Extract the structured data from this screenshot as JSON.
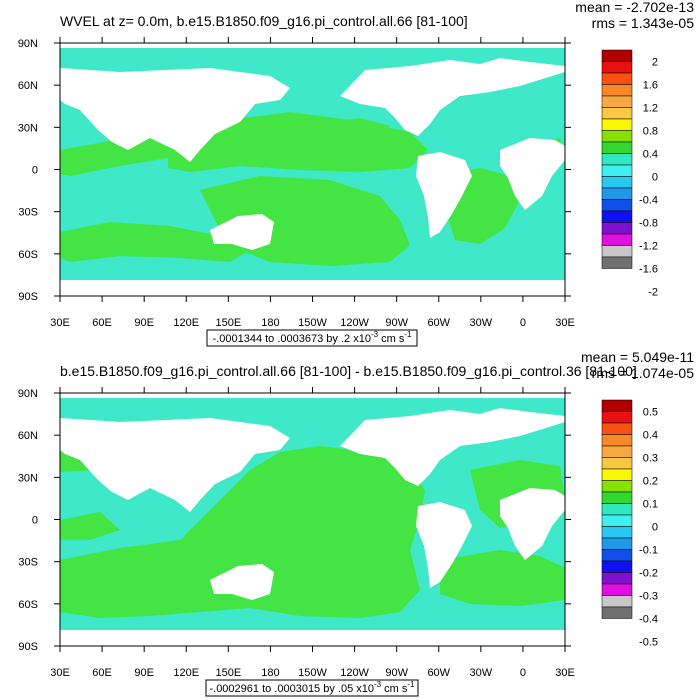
{
  "chart_data": [
    {
      "type": "heatmap",
      "title": "WVEL at z=   0.0m, b.e15.B1850.f09_g16.pi_control.all.66 [81-100]",
      "stats": [
        "mean = -2.702e-13",
        "rms = 1.343e-05"
      ],
      "x_ticks": [
        "30E",
        "60E",
        "90E",
        "120E",
        "150E",
        "180",
        "150W",
        "120W",
        "90W",
        "60W",
        "30W",
        "0",
        "30E"
      ],
      "y_ticks": [
        "90N",
        "60N",
        "30N",
        "0",
        "30S",
        "60S",
        "90S"
      ],
      "range_text": "-.0001344 to .0003673 by .2 x10",
      "range_exp": "-3",
      "range_units": " cm s",
      "range_units_exp": "-1",
      "colorbar_labels": [
        "2",
        "1.6",
        "1.2",
        "0.8",
        "0.4",
        "0",
        "-0.4",
        "-0.8",
        "-1.2",
        "-1.6",
        "-2"
      ]
    },
    {
      "type": "heatmap",
      "title": "b.e15.B1850.f09_g16.pi_control.all.66 [81-100] - b.e15.B1850.f09_g16.pi_control.36 [81-100]",
      "stats": [
        "mean = 5.049e-11",
        "rms = 1.074e-05"
      ],
      "x_ticks": [
        "30E",
        "60E",
        "90E",
        "120E",
        "150E",
        "180",
        "150W",
        "120W",
        "90W",
        "60W",
        "30W",
        "0",
        "30E"
      ],
      "y_ticks": [
        "90N",
        "60N",
        "30N",
        "0",
        "30S",
        "60S",
        "90S"
      ],
      "range_text": "-.0002961 to .0003015 by .05 x10",
      "range_exp": "-3",
      "range_units": " cm s",
      "range_units_exp": "-1",
      "colorbar_labels": [
        "0.5",
        "0.4",
        "0.3",
        "0.2",
        "0.1",
        "0",
        "-0.1",
        "-0.2",
        "-0.3",
        "-0.4",
        "-0.5"
      ]
    }
  ],
  "colors": {
    "ocean_pos": "#44e444",
    "ocean_neg": "#3ee8c8",
    "land": "#ffffff",
    "colorbar": [
      "#b00000",
      "#e81010",
      "#f85010",
      "#f88828",
      "#f8a840",
      "#f8c840",
      "#f8f800",
      "#88e000",
      "#30d830",
      "#30e8c0",
      "#40f0f0",
      "#28c8f0",
      "#2098e8",
      "#1050e8",
      "#1010f0",
      "#8010d0",
      "#e010e0",
      "#c8c8c8",
      "#707070"
    ]
  }
}
